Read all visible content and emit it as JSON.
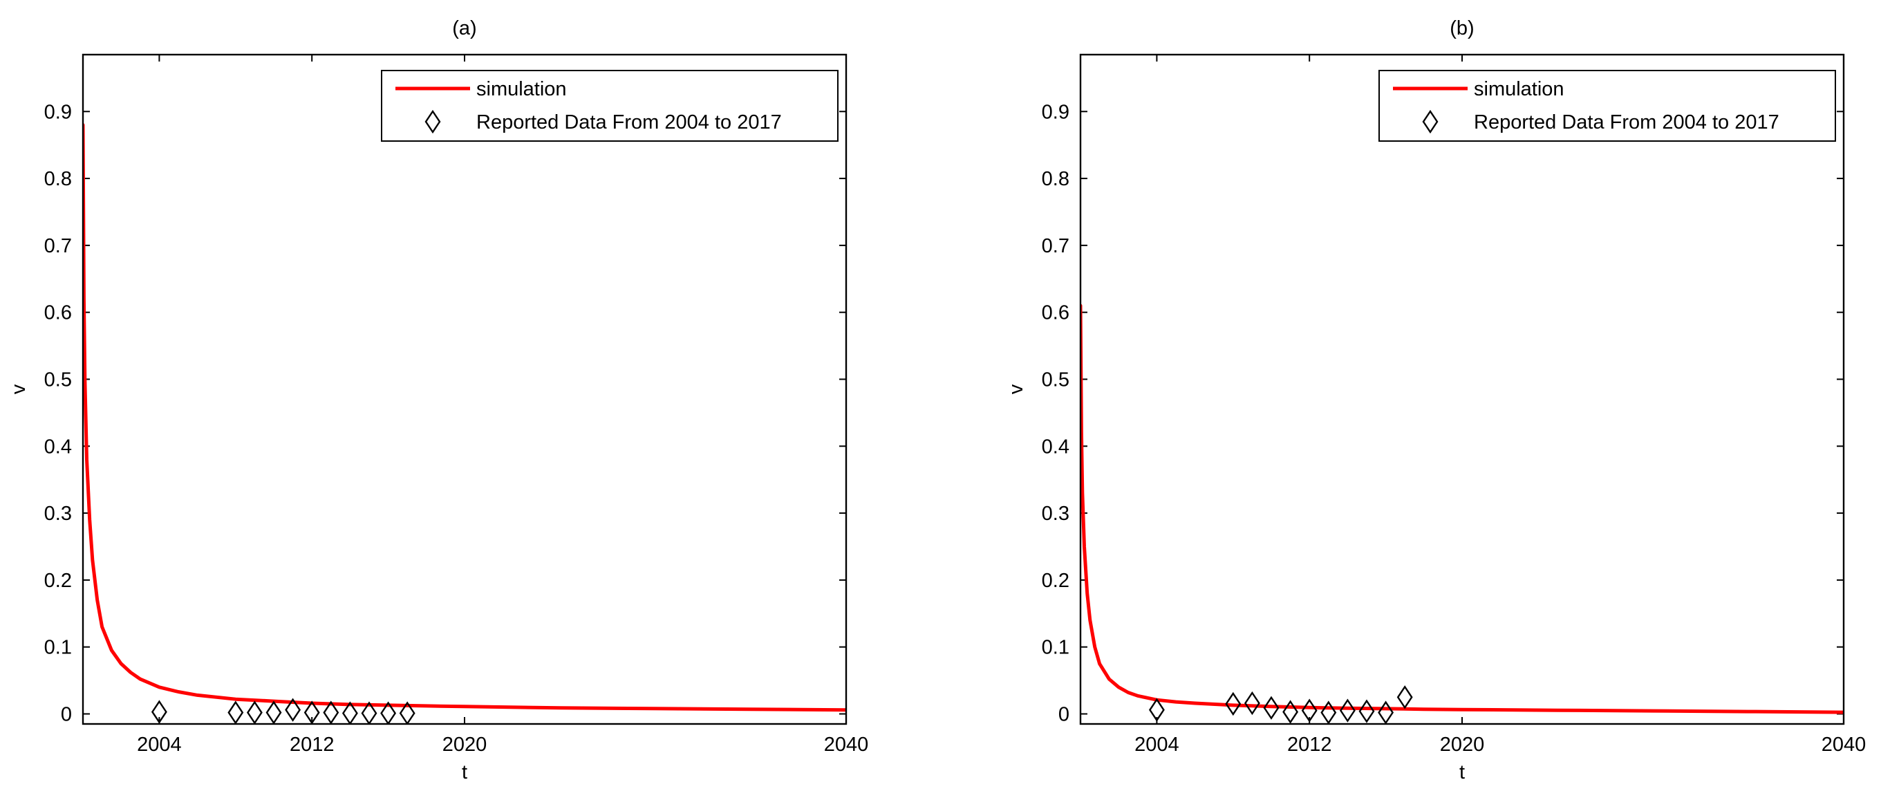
{
  "chart_data": [
    {
      "type": "line",
      "title": "(a)",
      "xlabel": "t",
      "ylabel": "v",
      "xlim": [
        2000,
        2040
      ],
      "ylim": [
        -0.015,
        0.985
      ],
      "xticks": [
        2004,
        2012,
        2020,
        2040
      ],
      "yticks": [
        0,
        0.1,
        0.2,
        0.3,
        0.4,
        0.5,
        0.6,
        0.7,
        0.8,
        0.9
      ],
      "legend_position": "top-right",
      "grid": false,
      "series": [
        {
          "name": "simulation",
          "kind": "line",
          "color": "#ff0000",
          "x": [
            2000,
            2000.05,
            2000.1,
            2000.2,
            2000.35,
            2000.5,
            2000.75,
            2001,
            2001.5,
            2002,
            2002.5,
            2003,
            2004,
            2005,
            2006,
            2008,
            2010,
            2012,
            2014,
            2016,
            2018,
            2020,
            2025,
            2030,
            2035,
            2040
          ],
          "y": [
            0.88,
            0.62,
            0.5,
            0.38,
            0.29,
            0.23,
            0.17,
            0.13,
            0.095,
            0.075,
            0.062,
            0.052,
            0.04,
            0.033,
            0.028,
            0.022,
            0.019,
            0.016,
            0.014,
            0.013,
            0.012,
            0.011,
            0.009,
            0.008,
            0.007,
            0.006
          ]
        },
        {
          "name": "Reported Data From 2004 to 2017",
          "kind": "scatter",
          "marker": "diamond",
          "color": "#000000",
          "x": [
            2004,
            2008,
            2009,
            2010,
            2011,
            2012,
            2013,
            2014,
            2015,
            2016,
            2017
          ],
          "y": [
            0.003,
            0.002,
            0.002,
            0.002,
            0.006,
            0.002,
            0.002,
            0.001,
            0.001,
            0.001,
            0.001
          ]
        }
      ]
    },
    {
      "type": "line",
      "title": "(b)",
      "xlabel": "t",
      "ylabel": "v",
      "xlim": [
        2000,
        2040
      ],
      "ylim": [
        -0.015,
        0.985
      ],
      "xticks": [
        2004,
        2012,
        2020,
        2040
      ],
      "yticks": [
        0,
        0.1,
        0.2,
        0.3,
        0.4,
        0.5,
        0.6,
        0.7,
        0.8,
        0.9
      ],
      "legend_position": "top-right",
      "grid": false,
      "series": [
        {
          "name": "simulation",
          "kind": "line",
          "color": "#ff0000",
          "x": [
            2000,
            2000.05,
            2000.1,
            2000.2,
            2000.35,
            2000.5,
            2000.75,
            2001,
            2001.5,
            2002,
            2002.5,
            2003,
            2004,
            2005,
            2006,
            2008,
            2010,
            2012,
            2014,
            2016,
            2018,
            2020,
            2025,
            2030,
            2035,
            2040
          ],
          "y": [
            0.61,
            0.42,
            0.33,
            0.25,
            0.18,
            0.14,
            0.1,
            0.075,
            0.052,
            0.04,
            0.032,
            0.027,
            0.021,
            0.018,
            0.016,
            0.013,
            0.011,
            0.0095,
            0.0085,
            0.0078,
            0.007,
            0.0065,
            0.0055,
            0.0045,
            0.0035,
            0.0025
          ]
        },
        {
          "name": "Reported Data From 2004 to 2017",
          "kind": "scatter",
          "marker": "diamond",
          "color": "#000000",
          "x": [
            2004,
            2008,
            2009,
            2010,
            2011,
            2012,
            2013,
            2014,
            2015,
            2016,
            2017
          ],
          "y": [
            0.006,
            0.015,
            0.016,
            0.009,
            0.003,
            0.005,
            0.002,
            0.005,
            0.004,
            0.002,
            0.025
          ]
        }
      ]
    }
  ]
}
